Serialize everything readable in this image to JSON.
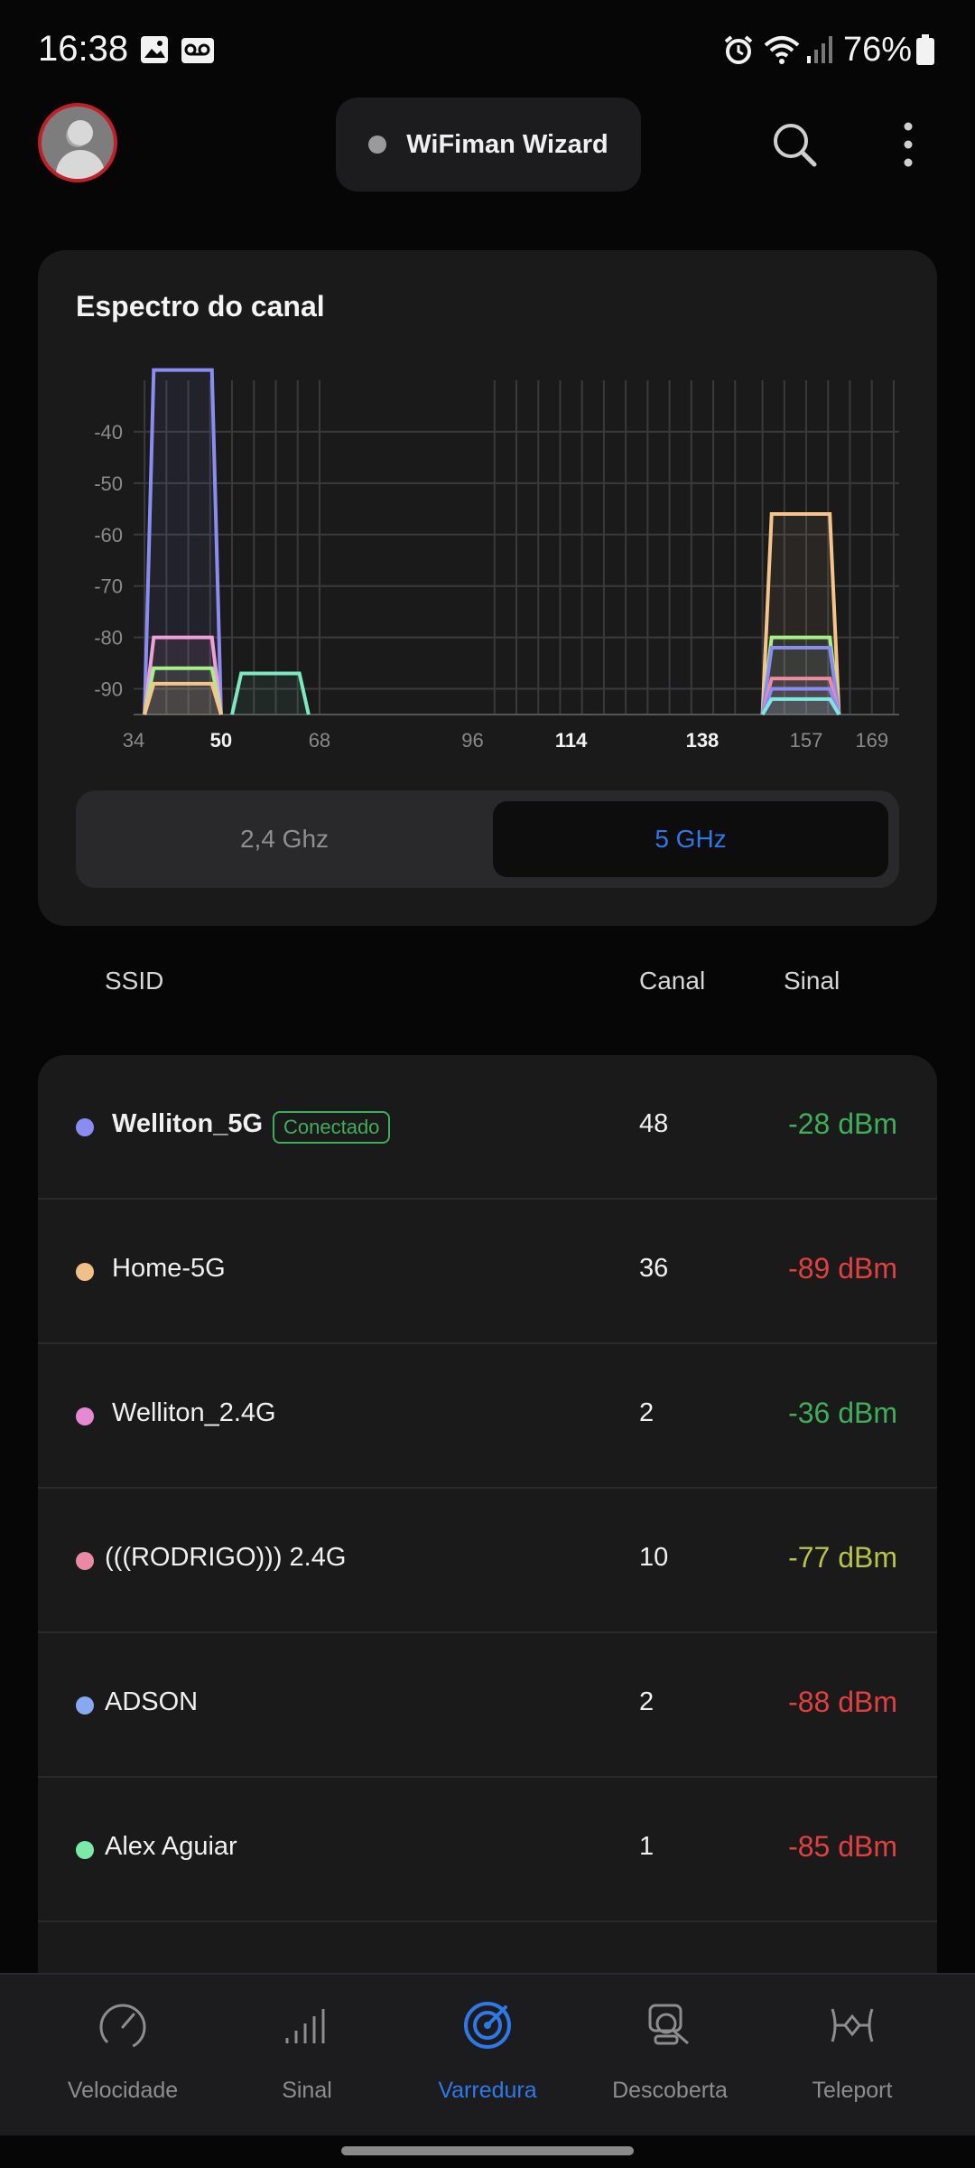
{
  "status_bar": {
    "time": "16:38",
    "battery": "76%",
    "icons": [
      "image-icon",
      "voicemail-icon",
      "alarm-icon",
      "wifi-icon",
      "cellular-signal-icon",
      "battery-icon"
    ]
  },
  "app_bar": {
    "wizard_label": "WiFiman Wizard",
    "status_dot_color": "#9a9a9a",
    "icons": [
      "avatar",
      "search-icon",
      "more-vert-icon"
    ]
  },
  "spectrum": {
    "title": "Espectro do canal",
    "band_options": [
      "2,4 Ghz",
      "5 GHz"
    ],
    "selected_band": "5 GHz",
    "chart_data": {
      "type": "area",
      "x_tick_labels": [
        "34",
        "50",
        "68",
        "96",
        "114",
        "138",
        "157",
        "169"
      ],
      "x_tick_labels_highlighted": [
        "50",
        "114",
        "138"
      ],
      "y_tick_labels": [
        "-40",
        "-50",
        "-60",
        "-70",
        "-80",
        "-90"
      ],
      "ylim": [
        -95,
        -30
      ],
      "channel_range": [
        34,
        174
      ],
      "series": [
        {
          "color": "#8b8cf2",
          "from": 36,
          "to": 50,
          "level": -28
        },
        {
          "color": "#f0a0d8",
          "from": 36,
          "to": 50,
          "level": -80
        },
        {
          "color": "#a6f08a",
          "from": 36,
          "to": 50,
          "level": -86
        },
        {
          "color": "#f4c48a",
          "from": 36,
          "to": 50,
          "level": -89
        },
        {
          "color": "#7ee8c0",
          "from": 52,
          "to": 66,
          "level": -87
        },
        {
          "color": "#f4c48a",
          "from": 149,
          "to": 163,
          "level": -56
        },
        {
          "color": "#a6f08a",
          "from": 149,
          "to": 163,
          "level": -80
        },
        {
          "color": "#8b8cf2",
          "from": 149,
          "to": 163,
          "level": -82
        },
        {
          "color": "#f08aa0",
          "from": 149,
          "to": 163,
          "level": -88
        },
        {
          "color": "#8b8cf2",
          "from": 149,
          "to": 163,
          "level": -90
        },
        {
          "color": "#7ee8e0",
          "from": 149,
          "to": 163,
          "level": -92
        }
      ]
    }
  },
  "table": {
    "headers": {
      "ssid": "SSID",
      "channel": "Canal",
      "signal": "Sinal"
    },
    "rows": [
      {
        "ssid": "Welliton_5G",
        "connected": true,
        "badge": "Conectado",
        "channel": "48",
        "signal": "-28 dBm",
        "dot": "#8b8cf2",
        "signal_color": "#3fae5a"
      },
      {
        "ssid": "Home-5G",
        "connected": false,
        "channel": "36",
        "signal": "-89 dBm",
        "dot": "#f0c08a",
        "signal_color": "#e04040"
      },
      {
        "ssid": "Welliton_2.4G",
        "connected": false,
        "channel": "2",
        "signal": "-36 dBm",
        "dot": "#e48ad2",
        "signal_color": "#3fae5a"
      },
      {
        "ssid": "(((RODRIGO))) 2.4G",
        "connected": false,
        "channel": "10",
        "signal": "-77 dBm",
        "dot": "#e88aa6",
        "signal_color": "#b8c24a"
      },
      {
        "ssid": "ADSON",
        "connected": false,
        "channel": "2",
        "signal": "-88 dBm",
        "dot": "#8aa8f0",
        "signal_color": "#e04040"
      },
      {
        "ssid": "Alex Aguiar",
        "connected": false,
        "channel": "1",
        "signal": "-85 dBm",
        "dot": "#7ee8a8",
        "signal_color": "#e04040"
      }
    ]
  },
  "bottom_nav": {
    "items": [
      {
        "label": "Velocidade",
        "icon": "speedometer-icon",
        "active": false
      },
      {
        "label": "Sinal",
        "icon": "signal-bars-icon",
        "active": false
      },
      {
        "label": "Varredura",
        "icon": "radar-scan-icon",
        "active": true
      },
      {
        "label": "Descoberta",
        "icon": "device-search-icon",
        "active": false
      },
      {
        "label": "Teleport",
        "icon": "teleport-icon",
        "active": false
      }
    ],
    "accent_color": "#2f78e8"
  }
}
